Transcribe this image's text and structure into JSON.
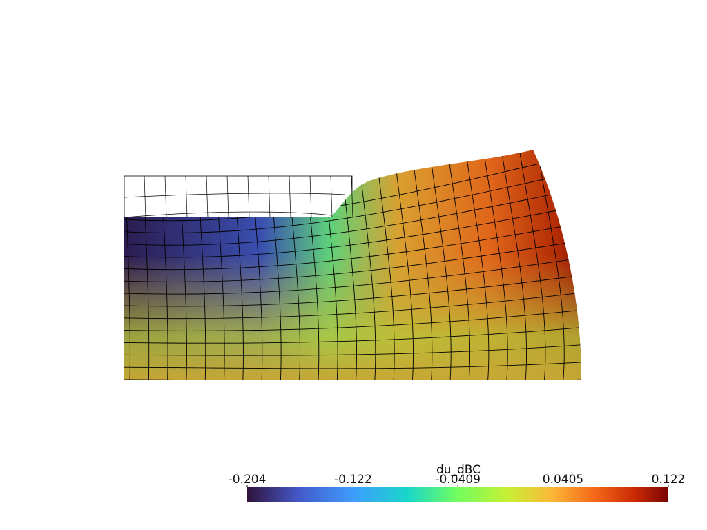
{
  "colorbar": {
    "title": "du_dBC",
    "range": [
      -0.204,
      0.122
    ],
    "ticks": [
      -0.204,
      -0.122,
      -0.0409,
      0.0405,
      0.122
    ]
  }
}
